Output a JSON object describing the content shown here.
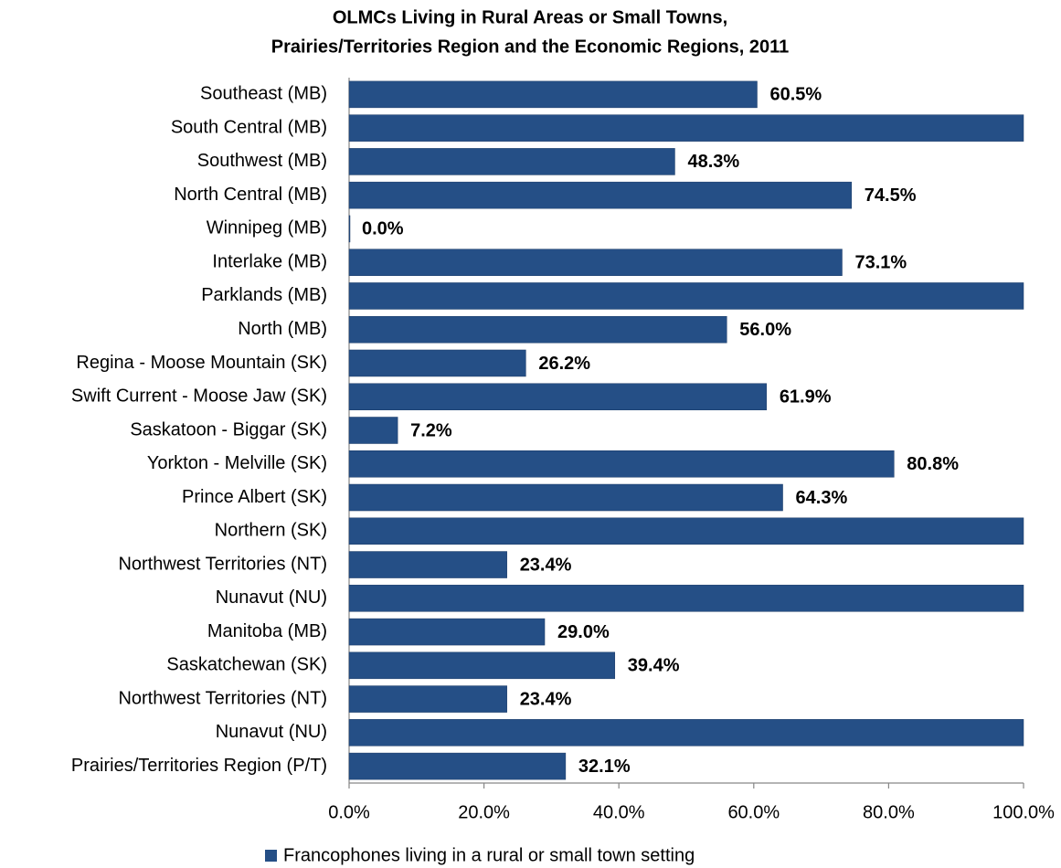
{
  "chart_data": {
    "type": "bar",
    "orientation": "horizontal",
    "title": [
      "OLMCs Living in Rural Areas or Small Towns,",
      "Prairies/Territories Region and the Economic Regions, 2011"
    ],
    "categories": [
      "Southeast (MB)",
      "South Central (MB)",
      "Southwest (MB)",
      "North Central (MB)",
      "Winnipeg (MB)",
      "Interlake (MB)",
      "Parklands (MB)",
      "North (MB)",
      "Regina - Moose Mountain (SK)",
      "Swift Current - Moose Jaw (SK)",
      "Saskatoon - Biggar (SK)",
      "Yorkton - Melville (SK)",
      "Prince Albert (SK)",
      "Northern (SK)",
      "Northwest Territories (NT)",
      "Nunavut (NU)",
      "Manitoba (MB)",
      "Saskatchewan (SK)",
      "Northwest Territories (NT)",
      "Nunavut (NU)",
      "Prairies/Territories Region (P/T)"
    ],
    "series": [
      {
        "name": "Francophones living in a rural or small town setting",
        "color": "#254f86",
        "values": [
          60.5,
          100,
          48.3,
          74.5,
          0.0,
          73.1,
          100,
          56.0,
          26.2,
          61.9,
          7.2,
          80.8,
          64.3,
          100,
          23.4,
          100,
          29.0,
          39.4,
          23.4,
          100,
          32.1
        ],
        "value_labels": [
          "60.5%",
          null,
          "48.3%",
          "74.5%",
          "0.0%",
          "73.1%",
          null,
          "56.0%",
          "26.2%",
          "61.9%",
          "7.2%",
          "80.8%",
          "64.3%",
          null,
          "23.4%",
          null,
          "29.0%",
          "39.4%",
          "23.4%",
          null,
          "32.1%"
        ]
      }
    ],
    "xlim": [
      0,
      100
    ],
    "xticks": [
      {
        "value": 0,
        "label": "0.0%"
      },
      {
        "value": 20,
        "label": "20.0%"
      },
      {
        "value": 40,
        "label": "40.0%"
      },
      {
        "value": 60,
        "label": "60.0%"
      },
      {
        "value": 80,
        "label": "80.0%"
      },
      {
        "value": 100,
        "label": "100.0%"
      }
    ],
    "legend": "bottom"
  }
}
